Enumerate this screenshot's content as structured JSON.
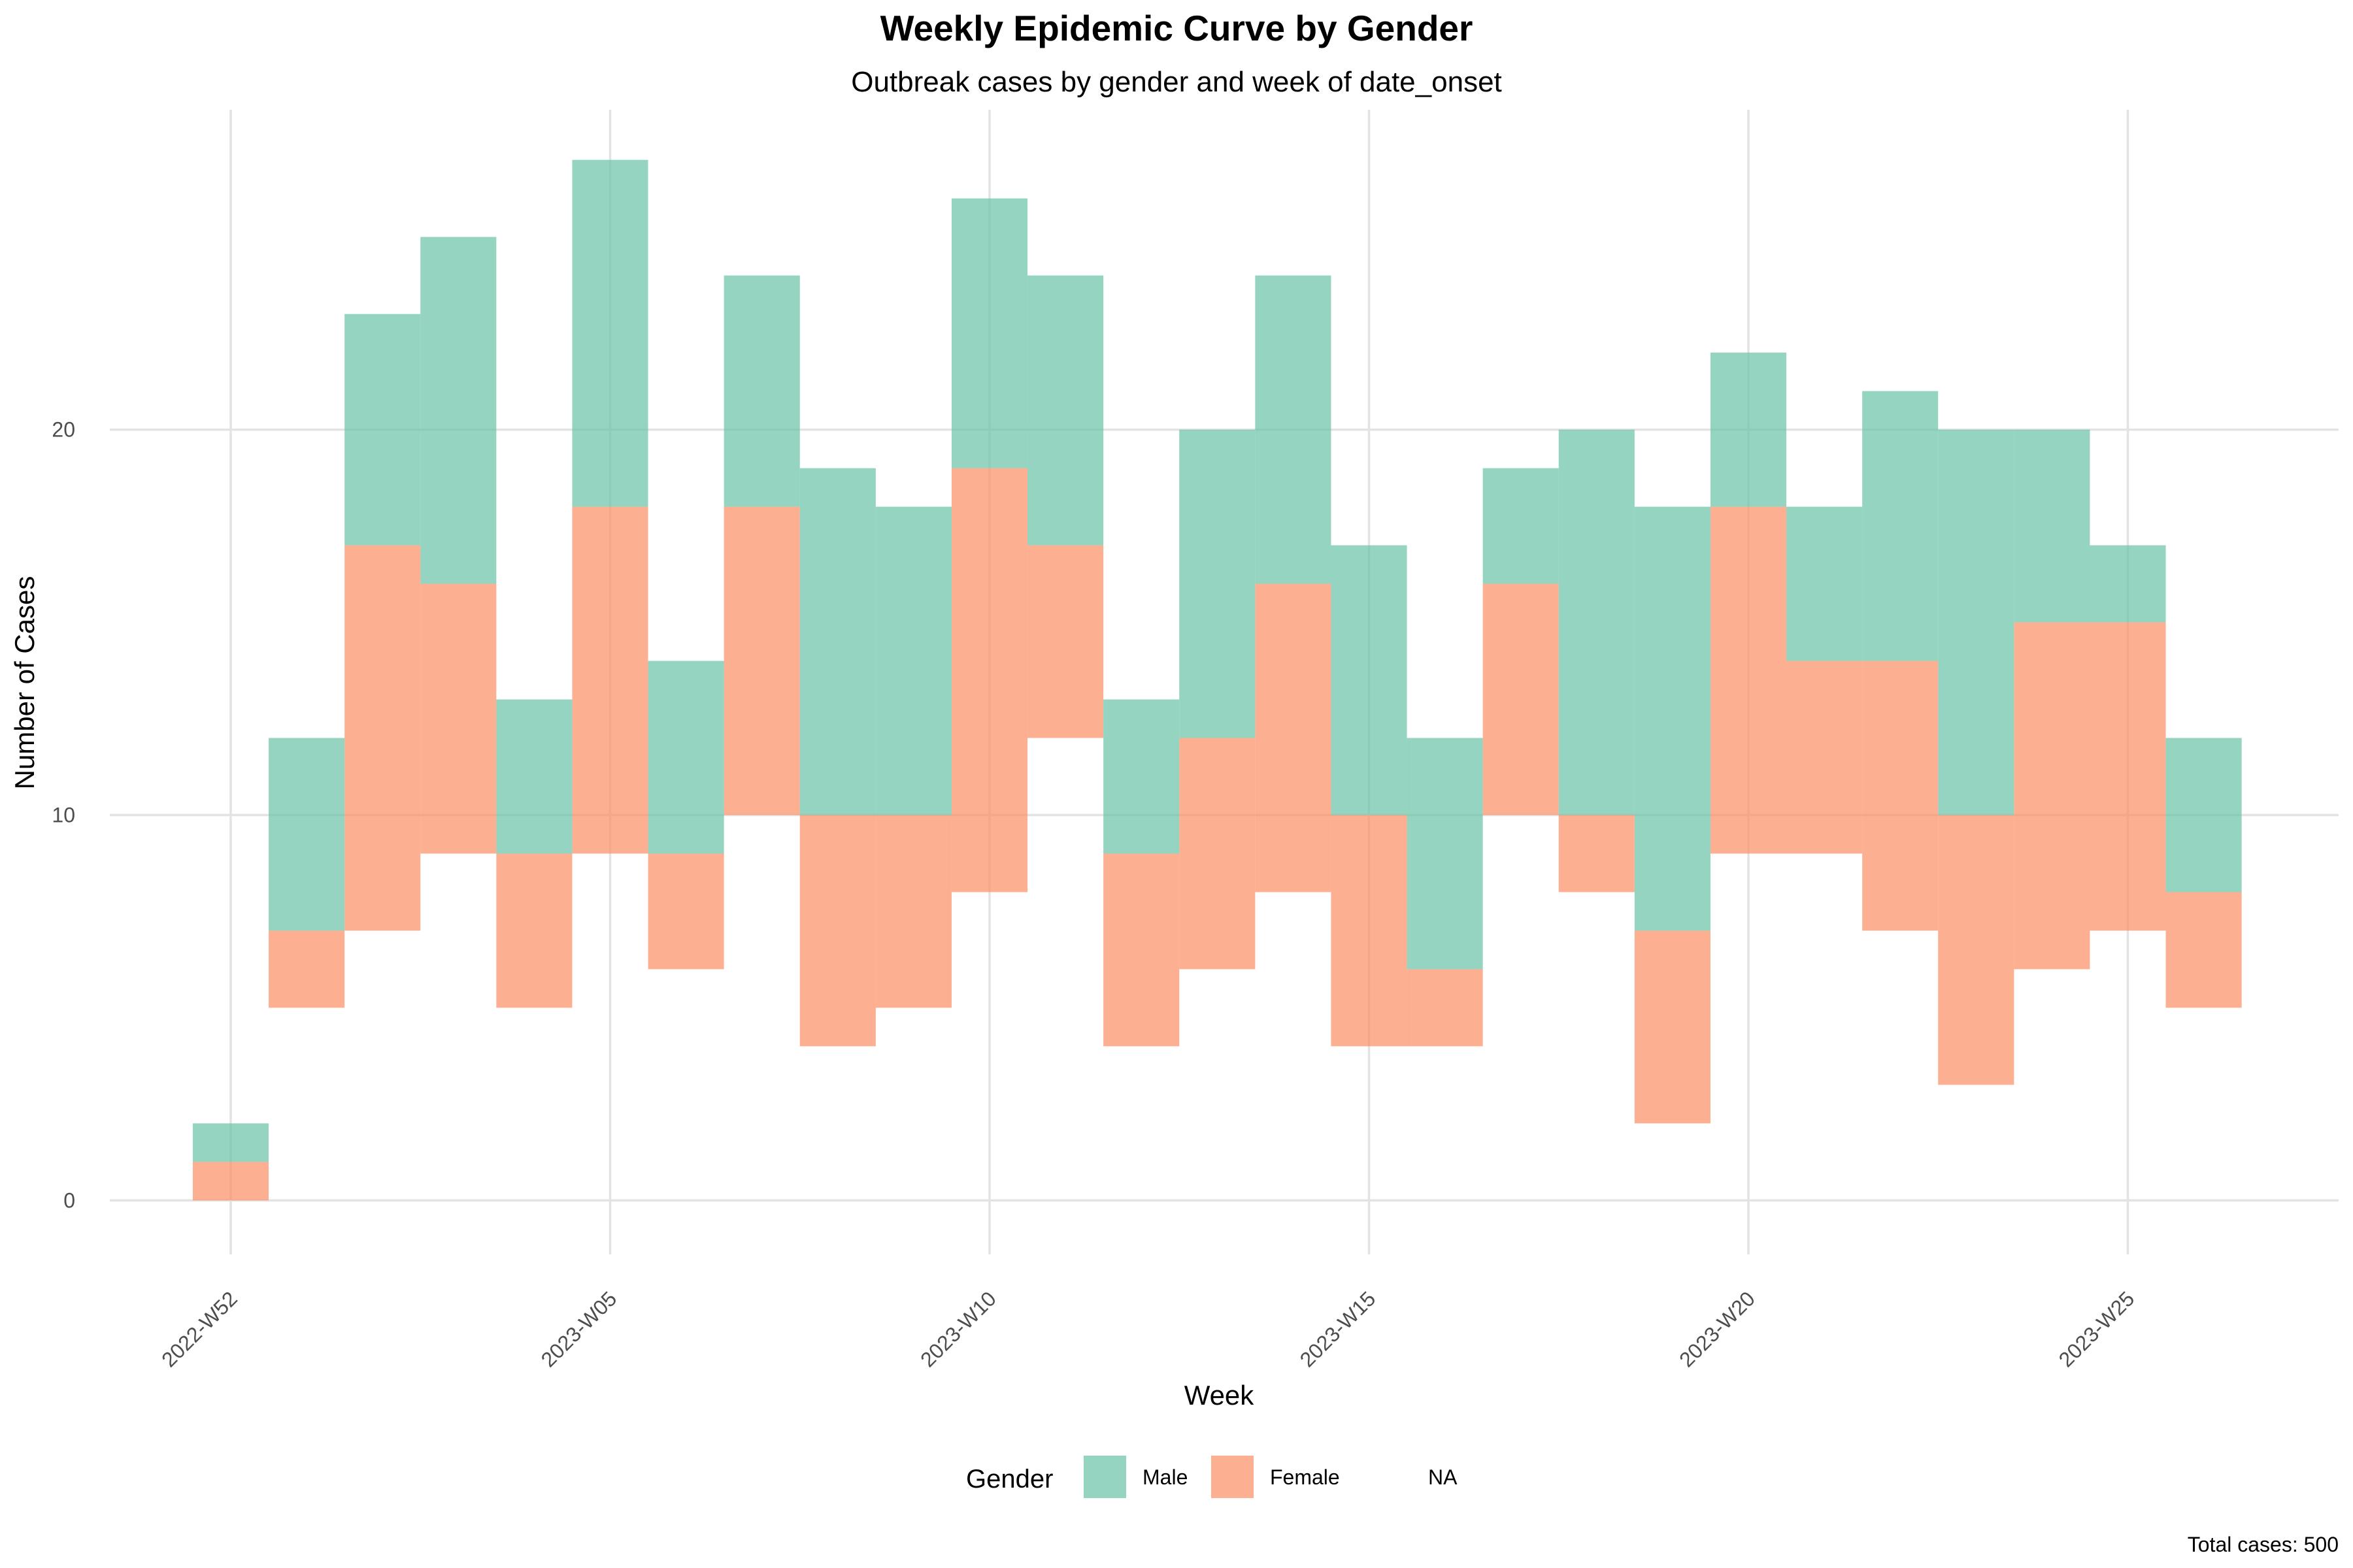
{
  "chart_data": {
    "type": "bar",
    "title": "Weekly Epidemic Curve by Gender",
    "subtitle": "Outbreak cases by gender and week of date_onset",
    "xlabel": "Week",
    "ylabel": "Number of Cases",
    "caption": "Total cases: 500",
    "ylim": [
      -1.4,
      28.3
    ],
    "y_ticks": [
      "0",
      "10",
      "20"
    ],
    "y_tick_values": [
      0,
      10,
      20
    ],
    "x_ticks": [
      "2022-W52",
      "2023-W05",
      "2023-W10",
      "2023-W15",
      "2023-W20",
      "2023-W25"
    ],
    "x_tick_week_index": [
      0,
      5,
      10,
      15,
      20,
      25
    ],
    "grid": true,
    "legend_position": "bottom",
    "legend": {
      "title": "Gender",
      "entries": [
        {
          "label": "Male",
          "color": "#66C2A5"
        },
        {
          "label": "Female",
          "color": "#FC8D62"
        },
        {
          "label": "NA",
          "color": null
        }
      ]
    },
    "colors": {
      "male": "#66C2A5",
      "female": "#FC8D62",
      "grid": "#e3e3e3"
    },
    "weeks": [
      "2022-W52",
      "2023-W01",
      "2023-W02",
      "2023-W03",
      "2023-W04",
      "2023-W05",
      "2023-W06",
      "2023-W07",
      "2023-W08",
      "2023-W09",
      "2023-W10",
      "2023-W11",
      "2023-W12",
      "2023-W13",
      "2023-W14",
      "2023-W15",
      "2023-W16",
      "2023-W17",
      "2023-W18",
      "2023-W19",
      "2023-W20",
      "2023-W21",
      "2023-W22",
      "2023-W23",
      "2023-W24",
      "2023-W25",
      "2023-W26"
    ],
    "series": [
      {
        "name": "Male",
        "low": [
          1,
          7,
          17,
          16,
          9,
          18,
          9,
          18,
          10,
          10,
          19,
          17,
          9,
          12,
          16,
          10,
          6,
          16,
          10,
          7,
          18,
          14,
          14,
          10,
          15,
          15,
          8
        ],
        "high": [
          2,
          12,
          23,
          25,
          13,
          27,
          14,
          24,
          19,
          18,
          26,
          24,
          13,
          20,
          24,
          17,
          12,
          19,
          20,
          18,
          22,
          18,
          21,
          20,
          20,
          17,
          12
        ]
      },
      {
        "name": "Female",
        "low": [
          0,
          5,
          7,
          9,
          5,
          9,
          6,
          10,
          4,
          5,
          8,
          12,
          4,
          6,
          8,
          4,
          4,
          10,
          8,
          2,
          9,
          9,
          7,
          3,
          6,
          7,
          5
        ],
        "high": [
          1,
          7,
          17,
          16,
          9,
          18,
          9,
          18,
          10,
          10,
          19,
          17,
          9,
          12,
          16,
          10,
          6,
          16,
          10,
          7,
          18,
          14,
          14,
          10,
          15,
          15,
          8
        ]
      }
    ]
  }
}
